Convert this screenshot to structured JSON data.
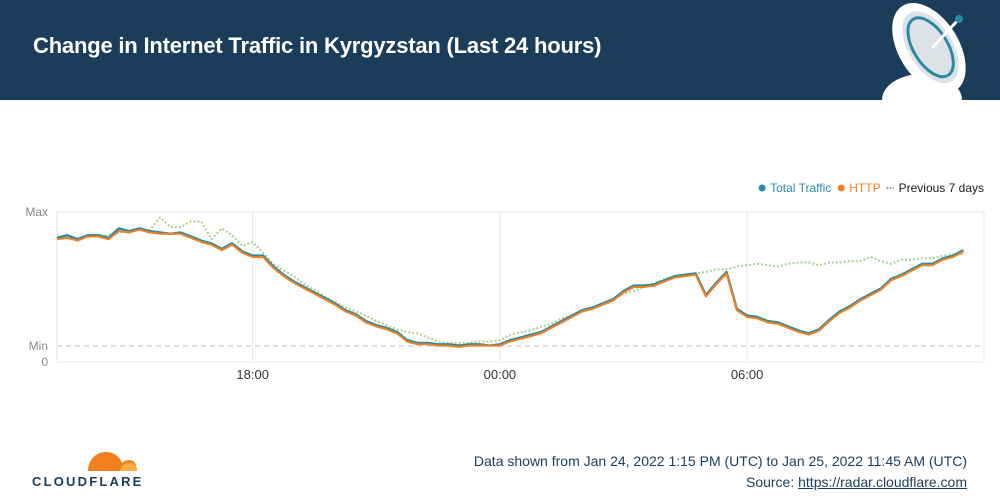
{
  "header": {
    "title": "Change in Internet Traffic in Kyrgyzstan (Last 24 hours)"
  },
  "footer": {
    "range_text": "Data shown from Jan 24, 2022 1:15 PM (UTC) to Jan 25, 2022 11:45 AM (UTC)",
    "source_prefix": "Source: ",
    "source_link": "https://radar.cloudflare.com",
    "logo_text": "CLOUDFLARE"
  },
  "colors": {
    "header_bg": "#1b3d5a",
    "total": "#2a8aa3",
    "http": "#f38020",
    "previous": "#a9cf8f",
    "grid": "#e6e6e6"
  },
  "chart_data": {
    "type": "line",
    "x_range": [
      "2022-01-24 13:15",
      "2022-01-25 11:45"
    ],
    "x_step_minutes": 15,
    "x_ticks": [
      "18:00",
      "00:00",
      "06:00"
    ],
    "y_tick_labels": [
      "Max",
      "Min",
      "0"
    ],
    "y_axis_note": "normalized traffic, 0 = Min, 1 = Max",
    "ylim": [
      -0.1,
      1
    ],
    "grid": true,
    "legend_position": "top-right",
    "legend": [
      {
        "label": "Total Traffic",
        "color": "#2a8aa3",
        "marker": "dot"
      },
      {
        "label": "HTTP",
        "color": "#f38020",
        "marker": "dot"
      },
      {
        "label": "Previous 7 days",
        "color": "#1b1b1b",
        "marker": "dashes"
      }
    ],
    "series": [
      {
        "name": "Total Traffic",
        "values": [
          0.81,
          0.83,
          0.8,
          0.83,
          0.83,
          0.81,
          0.88,
          0.86,
          0.88,
          0.86,
          0.85,
          0.84,
          0.85,
          0.82,
          0.79,
          0.77,
          0.73,
          0.77,
          0.71,
          0.68,
          0.68,
          0.6,
          0.54,
          0.49,
          0.45,
          0.41,
          0.37,
          0.33,
          0.28,
          0.25,
          0.2,
          0.17,
          0.15,
          0.12,
          0.06,
          0.04,
          0.04,
          0.03,
          0.03,
          0.02,
          0.03,
          0.03,
          0.02,
          0.03,
          0.06,
          0.08,
          0.1,
          0.12,
          0.16,
          0.2,
          0.24,
          0.28,
          0.3,
          0.33,
          0.36,
          0.42,
          0.46,
          0.46,
          0.47,
          0.5,
          0.53,
          0.54,
          0.55,
          0.39,
          0.48,
          0.56,
          0.29,
          0.24,
          0.23,
          0.2,
          0.19,
          0.16,
          0.13,
          0.11,
          0.14,
          0.21,
          0.27,
          0.31,
          0.36,
          0.4,
          0.44,
          0.51,
          0.54,
          0.58,
          0.62,
          0.62,
          0.66,
          0.68,
          0.72
        ]
      },
      {
        "name": "HTTP",
        "values": [
          0.8,
          0.81,
          0.79,
          0.82,
          0.82,
          0.8,
          0.86,
          0.85,
          0.87,
          0.85,
          0.84,
          0.84,
          0.84,
          0.81,
          0.78,
          0.76,
          0.72,
          0.76,
          0.7,
          0.67,
          0.67,
          0.59,
          0.53,
          0.48,
          0.44,
          0.4,
          0.36,
          0.32,
          0.27,
          0.24,
          0.19,
          0.16,
          0.14,
          0.11,
          0.05,
          0.03,
          0.03,
          0.02,
          0.02,
          0.01,
          0.02,
          0.02,
          0.02,
          0.02,
          0.05,
          0.07,
          0.09,
          0.11,
          0.15,
          0.19,
          0.23,
          0.27,
          0.29,
          0.32,
          0.35,
          0.41,
          0.45,
          0.45,
          0.46,
          0.49,
          0.52,
          0.53,
          0.54,
          0.38,
          0.47,
          0.55,
          0.28,
          0.23,
          0.22,
          0.19,
          0.18,
          0.15,
          0.12,
          0.1,
          0.13,
          0.2,
          0.26,
          0.3,
          0.35,
          0.39,
          0.43,
          0.5,
          0.53,
          0.57,
          0.61,
          0.61,
          0.65,
          0.67,
          0.71
        ]
      },
      {
        "name": "Previous 7 days",
        "values": [
          0.82,
          0.82,
          0.81,
          0.82,
          0.83,
          0.83,
          0.85,
          0.86,
          0.87,
          0.87,
          0.96,
          0.89,
          0.89,
          0.93,
          0.93,
          0.8,
          0.88,
          0.83,
          0.75,
          0.78,
          0.7,
          0.62,
          0.57,
          0.53,
          0.47,
          0.43,
          0.38,
          0.34,
          0.3,
          0.27,
          0.24,
          0.2,
          0.17,
          0.14,
          0.12,
          0.11,
          0.08,
          0.05,
          0.04,
          0.04,
          0.04,
          0.05,
          0.05,
          0.06,
          0.1,
          0.12,
          0.13,
          0.16,
          0.18,
          0.22,
          0.24,
          0.27,
          0.3,
          0.33,
          0.36,
          0.4,
          0.42,
          0.45,
          0.48,
          0.51,
          0.53,
          0.54,
          0.55,
          0.56,
          0.58,
          0.58,
          0.6,
          0.61,
          0.62,
          0.61,
          0.6,
          0.62,
          0.63,
          0.63,
          0.61,
          0.63,
          0.63,
          0.64,
          0.64,
          0.67,
          0.64,
          0.62,
          0.65,
          0.65,
          0.66,
          0.66,
          0.68,
          0.69,
          0.69
        ]
      }
    ]
  }
}
